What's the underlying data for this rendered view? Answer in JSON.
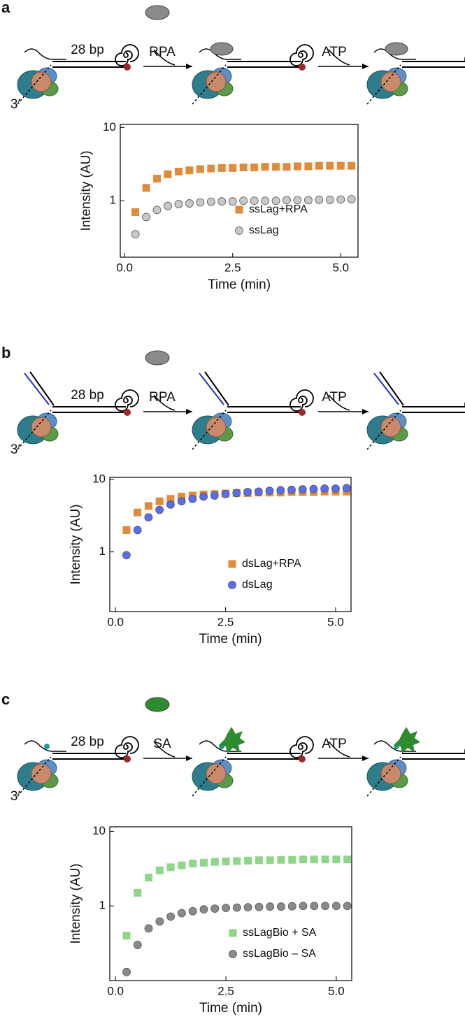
{
  "chart_data": [
    {
      "type": "scatter",
      "panel_label": "a",
      "annotations": [
        "28 bp",
        "RPA",
        "ATP",
        "3′"
      ],
      "x_label": "Time (min)",
      "y_label": "Intensity (AU)",
      "x": [
        0.25,
        0.5,
        0.75,
        1.0,
        1.25,
        1.5,
        1.75,
        2.0,
        2.25,
        2.5,
        2.75,
        3.0,
        3.25,
        3.5,
        3.75,
        4.0,
        4.25,
        4.5,
        4.75,
        5.0,
        5.25
      ],
      "series": [
        {
          "name": "ssLag+RPA",
          "color": "#e08a3c",
          "marker": "square",
          "values": [
            0.7,
            1.5,
            2.0,
            2.3,
            2.5,
            2.6,
            2.7,
            2.75,
            2.8,
            2.8,
            2.85,
            2.85,
            2.9,
            2.9,
            2.9,
            2.95,
            2.95,
            3.0,
            3.0,
            3.0,
            3.0
          ]
        },
        {
          "name": "ssLag",
          "color": "#c8c8c8",
          "marker": "circle",
          "values": [
            0.35,
            0.6,
            0.75,
            0.85,
            0.9,
            0.92,
            0.95,
            0.97,
            0.98,
            0.98,
            1.0,
            1.0,
            1.0,
            1.0,
            1.02,
            1.02,
            1.02,
            1.03,
            1.03,
            1.04,
            1.05
          ]
        }
      ],
      "xlim": [
        -0.1,
        5.4
      ],
      "xticks": [
        {
          "value": 0,
          "label": "0.0"
        },
        2.5,
        {
          "value": 5,
          "label": "5.0"
        }
      ],
      "ylim": [
        0.17,
        11
      ],
      "yticks": [
        1,
        10
      ],
      "log_y": true,
      "legend": "lower right"
    },
    {
      "type": "scatter",
      "panel_label": "b",
      "annotations": [
        "28 bp",
        "RPA",
        "ATP",
        "3′"
      ],
      "x_label": "Time (min)",
      "y_label": "Intensity (AU)",
      "x": [
        0.25,
        0.5,
        0.75,
        1.0,
        1.25,
        1.5,
        1.75,
        2.0,
        2.25,
        2.5,
        2.75,
        3.0,
        3.25,
        3.5,
        3.75,
        4.0,
        4.25,
        4.5,
        4.75,
        5.0,
        5.25
      ],
      "series": [
        {
          "name": "dsLag+RPA",
          "color": "#e08a3c",
          "marker": "square",
          "values": [
            2.0,
            3.5,
            4.3,
            5.0,
            5.4,
            5.8,
            6.0,
            6.2,
            6.3,
            6.4,
            6.5,
            6.5,
            6.6,
            6.6,
            6.6,
            6.7,
            6.7,
            6.7,
            6.8,
            6.8,
            6.8
          ]
        },
        {
          "name": "dsLag",
          "color": "#5a6cf0",
          "marker": "circle",
          "values": [
            0.9,
            2.0,
            3.0,
            3.8,
            4.5,
            5.0,
            5.4,
            5.8,
            6.0,
            6.3,
            6.5,
            6.7,
            6.8,
            7.0,
            7.1,
            7.2,
            7.3,
            7.4,
            7.5,
            7.5,
            7.6
          ]
        }
      ],
      "xlim": [
        -0.13,
        5.35
      ],
      "xticks": [
        {
          "value": 0,
          "label": "0.0"
        },
        2.5,
        {
          "value": 5,
          "label": "5.0"
        }
      ],
      "ylim": [
        0.15,
        10.7
      ],
      "yticks": [
        1,
        10
      ],
      "log_y": true,
      "legend": "lower right"
    },
    {
      "type": "scatter",
      "panel_label": "c",
      "annotations": [
        "28 bp",
        "SA",
        "ATP",
        "3′"
      ],
      "x_label": "Time (min)",
      "y_label": "Intensity (AU)",
      "x": [
        0.25,
        0.5,
        0.75,
        1.0,
        1.25,
        1.5,
        1.75,
        2.0,
        2.25,
        2.5,
        2.75,
        3.0,
        3.25,
        3.5,
        3.75,
        4.0,
        4.25,
        4.5,
        4.75,
        5.0,
        5.25
      ],
      "series": [
        {
          "name": "ssLagBio + SA",
          "color": "#8fd68a",
          "marker": "square",
          "values": [
            0.4,
            1.5,
            2.4,
            3.0,
            3.3,
            3.5,
            3.7,
            3.8,
            3.9,
            3.95,
            4.0,
            4.05,
            4.1,
            4.1,
            4.15,
            4.15,
            4.2,
            4.2,
            4.2,
            4.2,
            4.2
          ]
        },
        {
          "name": "ssLagBio – SA",
          "color": "#8a8a8a",
          "marker": "circle",
          "values": [
            0.13,
            0.3,
            0.5,
            0.62,
            0.72,
            0.8,
            0.85,
            0.9,
            0.92,
            0.94,
            0.95,
            0.96,
            0.97,
            0.98,
            0.98,
            0.99,
            1.0,
            1.0,
            1.0,
            1.0,
            1.0
          ]
        }
      ],
      "xlim": [
        -0.13,
        5.35
      ],
      "xticks": [
        {
          "value": 0,
          "label": "0.0"
        },
        2.5,
        {
          "value": 5,
          "label": "5.0"
        }
      ],
      "ylim": [
        0.1,
        11.5
      ],
      "yticks": [
        1,
        10
      ],
      "log_y": true,
      "legend": "lower right"
    }
  ]
}
